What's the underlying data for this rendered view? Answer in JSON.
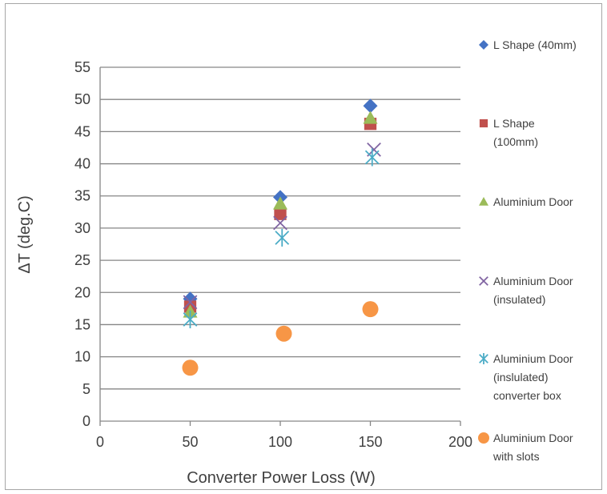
{
  "chart_data": {
    "type": "scatter",
    "title": "",
    "xlabel": "Converter  Power  Loss (W)",
    "ylabel": "ΔT (deg.C)",
    "xlim": [
      0,
      200
    ],
    "ylim": [
      0,
      55
    ],
    "xticks": [
      0,
      50,
      100,
      150,
      200
    ],
    "yticks": [
      0,
      5,
      10,
      15,
      20,
      25,
      30,
      35,
      40,
      45,
      50,
      55
    ],
    "grid": "horizontal",
    "legend_position": "right",
    "series": [
      {
        "name": [
          "L Shape (40mm)"
        ],
        "marker": "diamond",
        "color": "#4472c4",
        "x": [
          50,
          100,
          150
        ],
        "y": [
          19,
          34.8,
          49
        ]
      },
      {
        "name": [
          "L Shape",
          "(100mm)"
        ],
        "marker": "square",
        "color": "#c0504d",
        "x": [
          50,
          100,
          150
        ],
        "y": [
          17.8,
          32.2,
          46.2
        ]
      },
      {
        "name": [
          "Aluminium Door"
        ],
        "marker": "triangle",
        "color": "#9bbb59",
        "x": [
          50,
          100,
          150
        ],
        "y": [
          17,
          33.8,
          47.1
        ]
      },
      {
        "name": [
          "Aluminium Door",
          "(insulated)"
        ],
        "marker": "x",
        "color": "#8064a2",
        "x": [
          50,
          100,
          152
        ],
        "y": [
          18.5,
          30.8,
          42.2
        ]
      },
      {
        "name": [
          "Aluminium Door",
          "(inslulated)",
          "converter box"
        ],
        "marker": "star",
        "color": "#4bacc6",
        "x": [
          50,
          101,
          151
        ],
        "y": [
          15.8,
          28.5,
          41
        ]
      },
      {
        "name": [
          "Aluminium Door",
          "with slots"
        ],
        "marker": "circle",
        "color": "#f79646",
        "x": [
          50,
          102,
          150
        ],
        "y": [
          8.3,
          13.6,
          17.4
        ]
      }
    ]
  }
}
